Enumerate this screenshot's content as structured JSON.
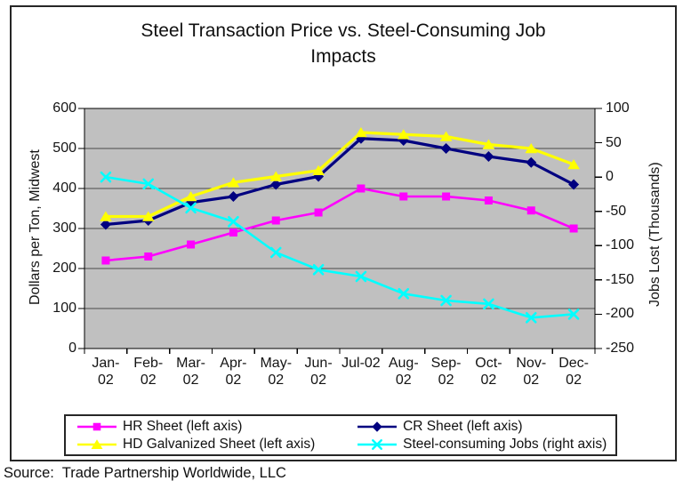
{
  "header": {
    "title_lines": [
      "Steel Transaction Price vs. Steel-Consuming Job",
      "Impacts"
    ]
  },
  "source": "Source:  Trade Partnership Worldwide, LLC",
  "chart_data": {
    "type": "line",
    "title": "Steel Transaction Price vs. Steel-Consuming Job Impacts",
    "categories": [
      "Jan-02",
      "Feb-02",
      "Mar-02",
      "Apr-02",
      "May-02",
      "Jun-02",
      "Jul-02",
      "Aug-02",
      "Sep-02",
      "Oct-02",
      "Nov-02",
      "Dec-02"
    ],
    "x_tick_lines": [
      [
        "Jan-",
        "02"
      ],
      [
        "Feb-",
        "02"
      ],
      [
        "Mar-",
        "02"
      ],
      [
        "Apr-",
        "02"
      ],
      [
        "May-",
        "02"
      ],
      [
        "Jun-",
        "02"
      ],
      [
        "Jul-02"
      ],
      [
        "Aug-",
        "02"
      ],
      [
        "Sep-",
        "02"
      ],
      [
        "Oct-",
        "02"
      ],
      [
        "Nov-",
        "02"
      ],
      [
        "Dec-",
        "02"
      ]
    ],
    "left_axis": {
      "label": "Dollars per Ton, Midwest",
      "min": 0,
      "max": 600,
      "tick_step": 100,
      "ticks": [
        600,
        500,
        400,
        300,
        200,
        100,
        0
      ]
    },
    "right_axis": {
      "label": "Jobs Lost (Thousands)",
      "min": -250,
      "max": 100,
      "tick_step": 50,
      "ticks": [
        100,
        50,
        0,
        -50,
        -100,
        -150,
        -200,
        -250
      ]
    },
    "plot_background": "#c0c0c0",
    "grid": true,
    "legend_position": "bottom",
    "series": [
      {
        "name": "HR Sheet (left axis)",
        "axis": "left",
        "color": "#ff00ff",
        "marker": "square",
        "values": [
          220,
          230,
          260,
          290,
          320,
          340,
          400,
          380,
          380,
          370,
          345,
          300
        ]
      },
      {
        "name": "CR Sheet (left axis)",
        "axis": "left",
        "color": "#000080",
        "marker": "diamond",
        "values": [
          310,
          320,
          365,
          380,
          410,
          430,
          525,
          520,
          500,
          480,
          465,
          410
        ]
      },
      {
        "name": "HD Galvanized Sheet (left axis)",
        "axis": "left",
        "color": "#ffff00",
        "marker": "triangle",
        "values": [
          330,
          330,
          380,
          415,
          430,
          445,
          540,
          535,
          530,
          510,
          500,
          460
        ]
      },
      {
        "name": "Steel-consuming Jobs (right axis)",
        "axis": "right",
        "color": "#00ffff",
        "marker": "x",
        "values": [
          0,
          -10,
          -45,
          -65,
          -110,
          -135,
          -145,
          -170,
          -180,
          -185,
          -205,
          -200
        ]
      }
    ]
  }
}
